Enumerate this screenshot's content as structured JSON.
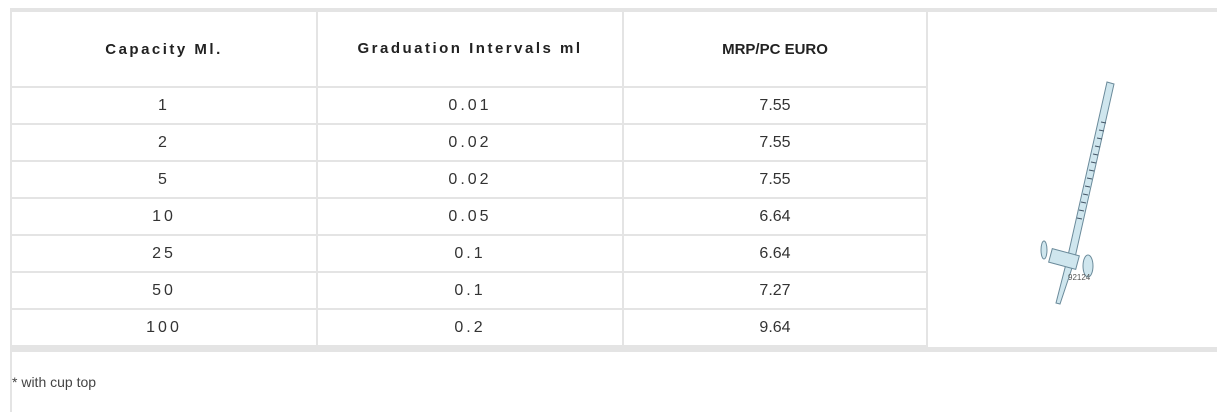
{
  "table": {
    "header": [
      "Capacity Ml.",
      "Graduation Intervals ml",
      "MRP/PC EURO"
    ],
    "rows": [
      [
        "1",
        "0.01",
        "7.55"
      ],
      [
        "2",
        "0.02",
        "7.55"
      ],
      [
        "5",
        "0.02",
        "7.55"
      ],
      [
        "10",
        "0.05",
        "6.64"
      ],
      [
        "25",
        "0.1",
        "6.64"
      ],
      [
        "50",
        "0.1",
        "7.27"
      ],
      [
        "100",
        "0.2",
        "9.64"
      ]
    ]
  },
  "image": {
    "label": "92124"
  },
  "footnote": "* with cup top"
}
